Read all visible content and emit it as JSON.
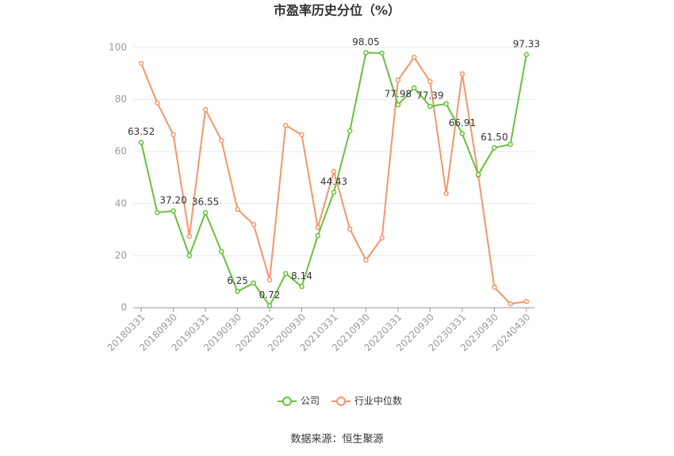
{
  "chart_data": {
    "type": "line",
    "title": "市盈率历史分位（%）",
    "categories": [
      "20180331",
      null,
      "20180930",
      null,
      "20190331",
      null,
      "20190930",
      null,
      "20200331",
      null,
      "20200930",
      null,
      "20210331",
      null,
      "20210930",
      null,
      "20220331",
      null,
      "20220930",
      null,
      "20230331",
      null,
      "20230930",
      null,
      "20240430"
    ],
    "series": [
      {
        "name": "公司",
        "color": "#67c23a",
        "values": [
          63.52,
          36.6,
          37.2,
          20,
          36.55,
          21.6,
          6.25,
          9.5,
          0.72,
          13.1,
          8.14,
          27.7,
          44.43,
          68,
          98.05,
          97.9,
          77.98,
          84.5,
          77.39,
          78.4,
          66.91,
          51.2,
          61.5,
          62.8,
          97.33
        ],
        "value_labels": [
          "63.52",
          null,
          "37.20",
          null,
          "36.55",
          null,
          "6.25",
          null,
          "0.72",
          null,
          "8.14",
          null,
          "44.43",
          null,
          "98.05",
          null,
          "77.98",
          null,
          "77.39",
          null,
          "66.91",
          null,
          "61.50",
          null,
          "97.33"
        ]
      },
      {
        "name": "行业中位数",
        "color": "#f4956a",
        "values": [
          93.9,
          78.7,
          66.5,
          27.4,
          76.2,
          64.3,
          37.8,
          32,
          10.7,
          70.1,
          66.5,
          30.8,
          52.4,
          30.2,
          18.3,
          26.8,
          87.5,
          96.3,
          86.9,
          43.9,
          89.9,
          50.9,
          7.9,
          1.5,
          2.4
        ]
      }
    ],
    "ylim": [
      0,
      100
    ],
    "yticks": [
      0,
      20,
      40,
      60,
      80,
      100
    ],
    "grid": true,
    "legend": "bottom",
    "source": "数据来源：恒生聚源"
  }
}
